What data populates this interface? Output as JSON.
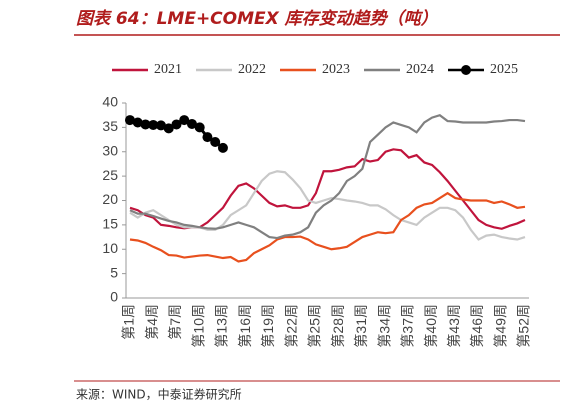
{
  "title": "图表 64：LME+COMEX 库存变动趋势（吨）",
  "source": "来源：WIND，中泰证券研究所",
  "chart_data": {
    "type": "line",
    "categories": [
      "第1周",
      null,
      null,
      "第4周",
      null,
      null,
      "第7周",
      null,
      null,
      "第10周",
      null,
      null,
      "第13周",
      null,
      null,
      "第16周",
      null,
      null,
      "第19周",
      null,
      null,
      "第22周",
      null,
      null,
      "第25周",
      null,
      null,
      "第28周",
      null,
      null,
      "第31周",
      null,
      null,
      "第34周",
      null,
      null,
      "第37周",
      null,
      null,
      "第40周",
      null,
      null,
      "第43周",
      null,
      null,
      "第46周",
      null,
      null,
      "第49周",
      null,
      null,
      "第52周"
    ],
    "ylim": [
      0,
      40
    ],
    "yticks": [
      0,
      5,
      10,
      15,
      20,
      25,
      30,
      35,
      40
    ],
    "legend": "top",
    "series": [
      {
        "name": "2021",
        "color": "#c0143c",
        "values": [
          18.5,
          18,
          17,
          16.5,
          15,
          14.8,
          14.5,
          14.3,
          14.5,
          14.5,
          15.5,
          17,
          18.5,
          21,
          23,
          23.5,
          22.5,
          21,
          19.5,
          18.8,
          19,
          18.5,
          18.5,
          19,
          21.5,
          26,
          26,
          26.3,
          26.8,
          27,
          28.5,
          28,
          28.3,
          30,
          30.5,
          30.3,
          28.8,
          29.3,
          27.8,
          27.3,
          25.8,
          24,
          22,
          20,
          18,
          16,
          15,
          14.5,
          14.2,
          14.8,
          15.3,
          16
        ]
      },
      {
        "name": "2022",
        "color": "#c8c8c8",
        "values": [
          17.5,
          16.5,
          17.5,
          18,
          17,
          16,
          15,
          14.5,
          14.5,
          14.5,
          14,
          14,
          15,
          17,
          18,
          19,
          21.5,
          24,
          25.5,
          26,
          25.8,
          24.3,
          22.5,
          20,
          19.5,
          20,
          20.5,
          20.3,
          20,
          19.8,
          19.5,
          19,
          19,
          18.2,
          17,
          16,
          15.5,
          15,
          16.5,
          17.5,
          18.5,
          18.5,
          18,
          16.5,
          14,
          12,
          12.8,
          13,
          12.5,
          12.2,
          12,
          12.5
        ]
      },
      {
        "name": "2023",
        "color": "#e8501e",
        "values": [
          12,
          11.8,
          11.3,
          10.5,
          9.8,
          8.8,
          8.7,
          8.3,
          8.5,
          8.7,
          8.8,
          8.5,
          8.2,
          8.4,
          7.5,
          7.8,
          9.2,
          10,
          10.8,
          12,
          12.5,
          12.5,
          12.6,
          12,
          11,
          10.5,
          10,
          10.2,
          10.5,
          11.5,
          12.5,
          13,
          13.5,
          13.3,
          13.5,
          16,
          17,
          18.5,
          19.2,
          19.5,
          20.5,
          21.5,
          20.5,
          20.2,
          20,
          20,
          20,
          19.5,
          19.8,
          19.2,
          18.5,
          18.7
        ]
      },
      {
        "name": "2024",
        "color": "#808080",
        "values": [
          18,
          17.3,
          17.3,
          16.8,
          16.3,
          15.8,
          15.5,
          15,
          14.8,
          14.5,
          14.3,
          14.2,
          14.5,
          15,
          15.5,
          15,
          14.5,
          13.5,
          12.5,
          12.3,
          12.8,
          13,
          13.5,
          14.5,
          17.5,
          19,
          20,
          21.5,
          24,
          25,
          26.5,
          32,
          33.5,
          35,
          36,
          35.5,
          35,
          34,
          36,
          37,
          37.5,
          36.3,
          36.2,
          36,
          36,
          36,
          36,
          36.2,
          36.3,
          36.5,
          36.5,
          36.3
        ]
      },
      {
        "name": "2025",
        "color": "#000000",
        "markers": true,
        "values": [
          36.5,
          36,
          35.6,
          35.5,
          35.4,
          34.8,
          35.6,
          36.5,
          35.7,
          35,
          33,
          32,
          30.8,
          null,
          null,
          null,
          null,
          null,
          null,
          null,
          null,
          null,
          null,
          null,
          null,
          null,
          null,
          null,
          null,
          null,
          null,
          null,
          null,
          null,
          null,
          null,
          null,
          null,
          null,
          null,
          null,
          null,
          null,
          null,
          null,
          null,
          null,
          null,
          null,
          null,
          null,
          null
        ]
      }
    ]
  }
}
